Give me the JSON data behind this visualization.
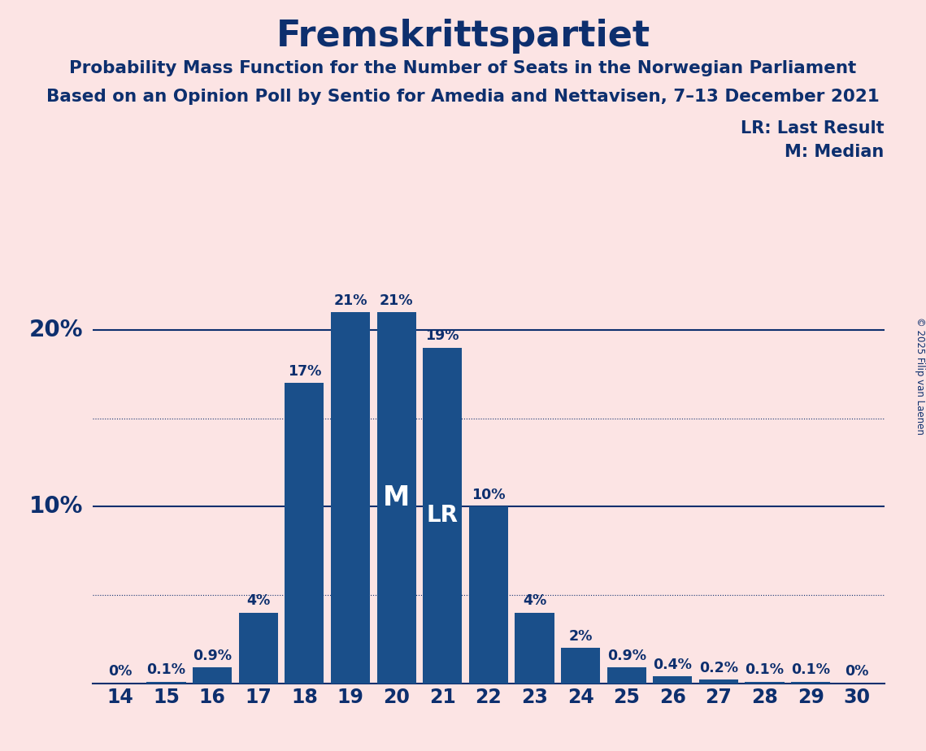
{
  "title": "Fremskrittspartiet",
  "subtitle1": "Probability Mass Function for the Number of Seats in the Norwegian Parliament",
  "subtitle2": "Based on an Opinion Poll by Sentio for Amedia and Nettavisen, 7–13 December 2021",
  "copyright": "© 2025 Filip van Laenen",
  "seats": [
    14,
    15,
    16,
    17,
    18,
    19,
    20,
    21,
    22,
    23,
    24,
    25,
    26,
    27,
    28,
    29,
    30
  ],
  "probabilities": [
    0.0,
    0.1,
    0.9,
    4.0,
    17.0,
    21.0,
    21.0,
    19.0,
    10.0,
    4.0,
    2.0,
    0.9,
    0.4,
    0.2,
    0.1,
    0.1,
    0.0
  ],
  "labels": [
    "0%",
    "0.1%",
    "0.9%",
    "4%",
    "17%",
    "21%",
    "21%",
    "19%",
    "10%",
    "4%",
    "2%",
    "0.9%",
    "0.4%",
    "0.2%",
    "0.1%",
    "0.1%",
    "0%"
  ],
  "median_seat": 20,
  "lr_seat": 21,
  "bar_color": "#1a4f8a",
  "background_color": "#fce4e4",
  "text_color": "#0d2f6e",
  "ylim": [
    0,
    24
  ],
  "legend_lr": "LR: Last Result",
  "legend_m": "M: Median"
}
